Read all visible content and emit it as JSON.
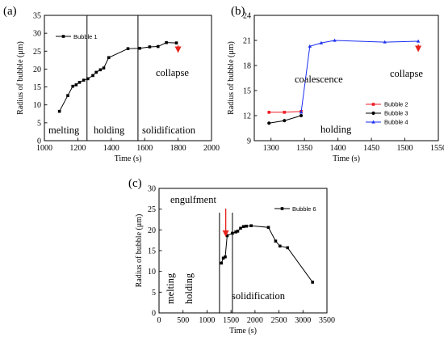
{
  "chart_data": [
    {
      "panel": "(a)",
      "type": "line",
      "xlabel": "Time (s)",
      "ylabel": "Radius of bubble (μm)",
      "xlim": [
        1000,
        2000
      ],
      "ylim": [
        0,
        35
      ],
      "xticks": [
        1000,
        1200,
        1400,
        1600,
        1800,
        2000
      ],
      "yticks": [
        0,
        5,
        10,
        15,
        20,
        25,
        30,
        35
      ],
      "legend_position": "top-left",
      "series": [
        {
          "name": "Bubble 1",
          "color": "#000000",
          "marker": "square",
          "x": [
            1090,
            1140,
            1170,
            1190,
            1210,
            1235,
            1260,
            1290,
            1310,
            1335,
            1355,
            1385,
            1500,
            1570,
            1630,
            1680,
            1730,
            1790
          ],
          "y": [
            8.2,
            12.6,
            15.2,
            15.6,
            16.3,
            16.9,
            17.3,
            18.2,
            19.1,
            19.8,
            20.3,
            23.2,
            25.7,
            25.8,
            26.2,
            26.3,
            27.4,
            27.3
          ]
        }
      ],
      "vlines": [
        1255,
        1560
      ],
      "regions": [
        "melting",
        "holding",
        "solidification"
      ],
      "arrow": {
        "label": "collapse",
        "x": 1800,
        "y": 24.5
      }
    },
    {
      "panel": "(b)",
      "type": "line",
      "xlabel": "Time (s)",
      "ylabel": "Radius of bubble (μm)",
      "xlim": [
        1275,
        1550
      ],
      "ylim": [
        9,
        24
      ],
      "xticks": [
        1300,
        1350,
        1400,
        1450,
        1500,
        1550
      ],
      "yticks": [
        9,
        12,
        15,
        18,
        21,
        24
      ],
      "legend_position": "bottom-right",
      "series": [
        {
          "name": "Bubble 2",
          "color": "#ee1c24",
          "marker": "square",
          "x": [
            1297,
            1320,
            1345
          ],
          "y": [
            12.4,
            12.4,
            12.5
          ]
        },
        {
          "name": "Bubble 3",
          "color": "#000000",
          "marker": "circle",
          "x": [
            1297,
            1320,
            1345
          ],
          "y": [
            11.1,
            11.4,
            12.0
          ]
        },
        {
          "name": "Bubble 4",
          "color": "#1a2ef0",
          "marker": "triangle",
          "x": [
            1345,
            1358,
            1375,
            1395,
            1470,
            1520
          ],
          "y": [
            12.4,
            20.3,
            20.7,
            21.0,
            20.8,
            20.9
          ]
        }
      ],
      "annotations": [
        "coalescence",
        "holding"
      ],
      "arrow": {
        "label": "collapse",
        "x": 1520,
        "y": 19.6
      }
    },
    {
      "panel": "(c)",
      "type": "line",
      "xlabel": "Time (s)",
      "ylabel": "Radius of bubble (μm)",
      "xlim": [
        0,
        3500
      ],
      "ylim": [
        0,
        30
      ],
      "xticks": [
        0,
        500,
        1000,
        1500,
        2000,
        2500,
        3000,
        3500
      ],
      "yticks": [
        0,
        5,
        10,
        15,
        20,
        25,
        30
      ],
      "legend_position": "top-right",
      "series": [
        {
          "name": "Bubble 6",
          "color": "#000000",
          "marker": "square",
          "x": [
            1300,
            1340,
            1380,
            1420,
            1530,
            1600,
            1640,
            1700,
            1760,
            1820,
            1920,
            2280,
            2430,
            2520,
            2680,
            3200
          ],
          "y": [
            12.0,
            13.2,
            13.5,
            18.6,
            19.2,
            19.5,
            19.7,
            20.4,
            20.8,
            20.9,
            21.0,
            20.6,
            17.3,
            16.1,
            15.7,
            7.4
          ]
        }
      ],
      "vlines": [
        1260,
        1530
      ],
      "regions": [
        "melting",
        "holding",
        "solidification"
      ],
      "top_label": "engulfment",
      "arrow": {
        "x": 1390,
        "y": 18.3
      }
    }
  ]
}
